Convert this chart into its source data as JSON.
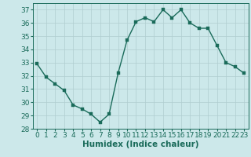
{
  "x": [
    0,
    1,
    2,
    3,
    4,
    5,
    6,
    7,
    8,
    9,
    10,
    11,
    12,
    13,
    14,
    15,
    16,
    17,
    18,
    19,
    20,
    21,
    22,
    23
  ],
  "y": [
    32.9,
    31.9,
    31.4,
    30.9,
    29.8,
    29.5,
    29.1,
    28.5,
    29.1,
    32.2,
    34.7,
    36.1,
    36.4,
    36.1,
    37.0,
    36.4,
    37.0,
    36.0,
    35.6,
    35.6,
    34.3,
    33.0,
    32.7,
    32.2
  ],
  "line_color": "#1a6b5a",
  "marker_color": "#1a6b5a",
  "bg_color": "#cce8ea",
  "grid_color": "#b0cdd0",
  "xlabel": "Humidex (Indice chaleur)",
  "ylim": [
    28,
    37.5
  ],
  "yticks": [
    28,
    29,
    30,
    31,
    32,
    33,
    34,
    35,
    36,
    37
  ],
  "xticks": [
    0,
    1,
    2,
    3,
    4,
    5,
    6,
    7,
    8,
    9,
    10,
    11,
    12,
    13,
    14,
    15,
    16,
    17,
    18,
    19,
    20,
    21,
    22,
    23
  ],
  "xlabel_fontsize": 7.5,
  "tick_fontsize": 6.5,
  "line_width": 1.0,
  "marker_size": 2.5
}
